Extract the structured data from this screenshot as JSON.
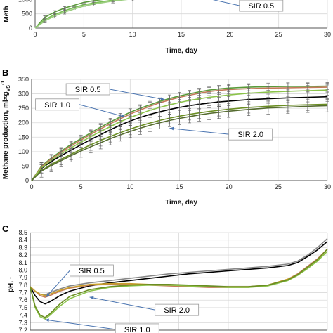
{
  "figure": {
    "panels": [
      {
        "id": "A",
        "label": "",
        "type": "line",
        "xlabel": "Time, day",
        "ylabel": "Meth",
        "xlim": [
          0,
          30
        ],
        "ylim": [
          0,
          1500
        ],
        "xticks": [
          0,
          5,
          10,
          15,
          20,
          25,
          30
        ],
        "xtick_labels": [
          "0",
          "5",
          "10",
          "15",
          "20",
          "25",
          "30"
        ],
        "yticks": [
          0,
          500,
          1000
        ],
        "ytick_labels": [
          "0",
          "500",
          "1000"
        ],
        "callouts": [
          {
            "text": "SIR 0.5",
            "target_x": 16.5,
            "target_y": 1130
          }
        ],
        "series": [
          {
            "color": "#5a9a3a",
            "x": [
              0,
              1,
              2,
              3,
              4,
              5,
              6,
              8,
              10,
              12,
              14,
              16,
              18,
              20,
              22,
              24,
              26,
              28,
              30
            ],
            "y": [
              0,
              380,
              560,
              700,
              800,
              900,
              960,
              1050,
              1110,
              1160,
              1200,
              1230,
              1255,
              1275,
              1290,
              1305,
              1315,
              1325,
              1335
            ]
          },
          {
            "color": "#7abf55",
            "x": [
              0,
              1,
              2,
              3,
              4,
              5,
              6,
              8,
              10,
              12,
              14,
              16,
              18,
              20,
              22,
              24,
              26,
              28,
              30
            ],
            "y": [
              0,
              300,
              470,
              610,
              720,
              820,
              880,
              980,
              1050,
              1110,
              1150,
              1185,
              1210,
              1235,
              1255,
              1270,
              1285,
              1295,
              1305
            ]
          },
          {
            "color": "#9acd7e",
            "x": [
              0,
              1,
              2,
              3,
              4,
              5,
              6,
              8,
              10,
              12,
              14,
              16,
              18,
              20,
              22,
              24,
              26,
              28,
              30
            ],
            "y": [
              0,
              250,
              420,
              560,
              670,
              770,
              840,
              950,
              1020,
              1080,
              1130,
              1165,
              1195,
              1220,
              1240,
              1255,
              1270,
              1280,
              1290
            ]
          }
        ]
      },
      {
        "id": "B",
        "label": "B",
        "type": "line",
        "xlabel": "Time, day",
        "ylabel": "Methane production, ml×g",
        "ylabel_sub": "VS",
        "ylabel_sup": "-1",
        "xlim": [
          0,
          30
        ],
        "ylim": [
          0,
          350
        ],
        "xticks": [
          0,
          5,
          10,
          15,
          20,
          25,
          30
        ],
        "xtick_labels": [
          "0",
          "5",
          "10",
          "15",
          "20",
          "25",
          "30"
        ],
        "yticks": [
          0,
          50,
          100,
          150,
          200,
          250,
          300,
          350
        ],
        "ytick_labels": [
          "0",
          "50",
          "100",
          "150",
          "200",
          "250",
          "300",
          "350"
        ],
        "callouts": [
          {
            "text": "SIR 0.5",
            "box_x": 3.5,
            "box_y": 316,
            "target_x": 13.5,
            "target_y": 280
          },
          {
            "text": "SIR 1.0",
            "box_x": 0.4,
            "box_y": 263,
            "target_x": 9.5,
            "target_y": 220
          },
          {
            "text": "SIR 2.0",
            "box_x": 20,
            "box_y": 160,
            "target_x": 14,
            "target_y": 181
          }
        ],
        "series": [
          {
            "color": "#5a9a3a",
            "x": [
              0,
              1,
              2,
              3,
              4,
              5,
              6,
              7,
              8,
              9,
              10,
              11,
              12,
              13,
              14,
              15,
              16,
              17,
              18,
              19,
              20,
              22,
              24,
              26,
              28,
              30
            ],
            "y": [
              0,
              50,
              78,
              102,
              125,
              145,
              165,
              185,
              203,
              220,
              236,
              250,
              262,
              274,
              284,
              293,
              300,
              307,
              313,
              317,
              320,
              323,
              325,
              326,
              326,
              327
            ]
          },
          {
            "color": "#c47a5a",
            "x": [
              0,
              1,
              2,
              3,
              4,
              5,
              6,
              7,
              8,
              9,
              10,
              11,
              12,
              13,
              14,
              15,
              16,
              17,
              18,
              19,
              20,
              22,
              24,
              26,
              28,
              30
            ],
            "y": [
              0,
              48,
              75,
              98,
              120,
              140,
              160,
              179,
              197,
              214,
              230,
              244,
              257,
              269,
              279,
              288,
              295,
              302,
              308,
              312,
              315,
              318,
              320,
              321,
              322,
              323
            ]
          },
          {
            "color": "#000000",
            "x": [
              0,
              1,
              2,
              3,
              4,
              5,
              6,
              7,
              8,
              9,
              10,
              11,
              12,
              13,
              14,
              15,
              16,
              17,
              18,
              19,
              20,
              22,
              24,
              26,
              28,
              30
            ],
            "y": [
              0,
              42,
              66,
              86,
              105,
              124,
              142,
              159,
              176,
              192,
              206,
              218,
              229,
              238,
              246,
              253,
              259,
              264,
              268,
              272,
              275,
              280,
              283,
              286,
              288,
              290
            ]
          },
          {
            "color": "#8bc34a",
            "x": [
              0,
              1,
              2,
              3,
              4,
              5,
              6,
              7,
              8,
              9,
              10,
              11,
              12,
              13,
              14,
              15,
              16,
              17,
              18,
              19,
              20,
              22,
              24,
              26,
              28,
              30
            ],
            "y": [
              0,
              44,
              70,
              92,
              113,
              133,
              152,
              170,
              187,
              204,
              218,
              231,
              243,
              253,
              262,
              270,
              277,
              283,
              288,
              292,
              296,
              302,
              306,
              309,
              311,
              313
            ]
          },
          {
            "color": "#6b8e23",
            "x": [
              0,
              1,
              2,
              3,
              4,
              5,
              6,
              7,
              8,
              9,
              10,
              11,
              12,
              13,
              14,
              15,
              16,
              17,
              18,
              19,
              20,
              22,
              24,
              26,
              28,
              30
            ],
            "y": [
              0,
              35,
              56,
              74,
              91,
              108,
              124,
              139,
              153,
              166,
              178,
              189,
              199,
              208,
              216,
              223,
              229,
              234,
              239,
              243,
              247,
              253,
              257,
              260,
              262,
              264
            ]
          },
          {
            "color": "#556b2f",
            "x": [
              0,
              1,
              2,
              3,
              4,
              5,
              6,
              7,
              8,
              9,
              10,
              11,
              12,
              13,
              14,
              15,
              16,
              17,
              18,
              19,
              20,
              22,
              24,
              26,
              28,
              30
            ],
            "y": [
              0,
              33,
              52,
              69,
              86,
              102,
              117,
              131,
              145,
              158,
              170,
              181,
              191,
              200,
              208,
              215,
              221,
              227,
              232,
              236,
              240,
              246,
              251,
              254,
              257,
              259
            ]
          }
        ]
      },
      {
        "id": "C",
        "label": "C",
        "type": "line",
        "xlabel": "",
        "ylabel": "pH, -",
        "xlim": [
          0,
          30
        ],
        "ylim": [
          7.2,
          8.5
        ],
        "xticks": [
          0,
          5,
          10,
          15,
          20,
          25,
          30
        ],
        "yticks": [
          7.2,
          7.3,
          7.4,
          7.5,
          7.6,
          7.7,
          7.8,
          7.9,
          8.0,
          8.1,
          8.2,
          8.3,
          8.4,
          8.5
        ],
        "ytick_labels": [
          "7.2",
          "7.3",
          "7.4",
          "7.5",
          "7.6",
          "7.7",
          "7.8",
          "7.9",
          "8.0",
          "8.1",
          "8.2",
          "8.3",
          "8.4",
          "8.5"
        ],
        "callouts": [
          {
            "text": "SIR 0.5",
            "box_x": 4.0,
            "box_y": 7.995,
            "target_x": 1.6,
            "target_y": 7.64
          },
          {
            "text": "SIR 2.0",
            "box_x": 12.6,
            "box_y": 7.47,
            "target_x": 6.0,
            "target_y": 7.64
          },
          {
            "text": "SIR 1.0",
            "box_x": 8.6,
            "box_y": 7.21,
            "target_x": 1.5,
            "target_y": 7.34
          }
        ],
        "series": [
          {
            "color": "#888888",
            "x": [
              0,
              0.5,
              1,
              1.5,
              2,
              3,
              4,
              6,
              8,
              10,
              12,
              14,
              16,
              18,
              20,
              22,
              24,
              26,
              27,
              28,
              29,
              30
            ],
            "y": [
              7.78,
              7.72,
              7.68,
              7.67,
              7.7,
              7.75,
              7.79,
              7.83,
              7.86,
              7.89,
              7.92,
              7.95,
              7.97,
              7.99,
              8.01,
              8.03,
              8.05,
              8.08,
              8.12,
              8.2,
              8.3,
              8.42
            ]
          },
          {
            "color": "#000000",
            "x": [
              0,
              0.5,
              1,
              1.5,
              2,
              3,
              4,
              6,
              8,
              10,
              12,
              14,
              16,
              18,
              20,
              22,
              24,
              26,
              27,
              28,
              29,
              30
            ],
            "y": [
              7.78,
              7.66,
              7.58,
              7.55,
              7.58,
              7.66,
              7.72,
              7.79,
              7.83,
              7.86,
              7.89,
              7.92,
              7.95,
              7.97,
              7.99,
              8.01,
              8.03,
              8.06,
              8.1,
              8.18,
              8.27,
              8.38
            ]
          },
          {
            "color": "#c47a5a",
            "x": [
              0,
              0.5,
              1,
              1.5,
              2,
              3,
              4,
              6,
              8,
              10,
              12,
              14,
              16,
              18,
              20,
              22,
              24,
              26,
              27,
              28,
              29,
              30
            ],
            "y": [
              7.78,
              7.72,
              7.66,
              7.64,
              7.66,
              7.72,
              7.76,
              7.8,
              7.81,
              7.81,
              7.8,
              7.79,
              7.78,
              7.77,
              7.77,
              7.77,
              7.8,
              7.88,
              7.95,
              8.05,
              8.15,
              8.28
            ]
          },
          {
            "color": "#c8a02a",
            "x": [
              0,
              0.5,
              1,
              1.5,
              2,
              3,
              4,
              6,
              8,
              10,
              12,
              14,
              16,
              18,
              20,
              22,
              24,
              26,
              27,
              28,
              29,
              30
            ],
            "y": [
              7.78,
              7.72,
              7.68,
              7.66,
              7.68,
              7.73,
              7.77,
              7.81,
              7.82,
              7.82,
              7.81,
              7.8,
              7.79,
              7.78,
              7.78,
              7.78,
              7.8,
              7.88,
              7.94,
              8.03,
              8.13,
              8.25
            ]
          },
          {
            "color": "#8bc34a",
            "x": [
              0,
              0.5,
              1,
              1.5,
              2,
              3,
              4,
              6,
              8,
              10,
              12,
              14,
              16,
              18,
              20,
              22,
              24,
              26,
              27,
              28,
              29,
              30
            ],
            "y": [
              7.78,
              7.5,
              7.38,
              7.35,
              7.4,
              7.52,
              7.62,
              7.72,
              7.77,
              7.79,
              7.8,
              7.8,
              7.79,
              7.78,
              7.77,
              7.77,
              7.79,
              7.86,
              7.93,
              8.02,
              8.12,
              8.25
            ]
          },
          {
            "color": "#6b8e23",
            "x": [
              0,
              0.5,
              1,
              1.5,
              2,
              3,
              4,
              6,
              8,
              10,
              12,
              14,
              16,
              18,
              20,
              22,
              24,
              26,
              27,
              28,
              29,
              30
            ],
            "y": [
              7.78,
              7.52,
              7.4,
              7.37,
              7.42,
              7.55,
              7.65,
              7.74,
              7.78,
              7.8,
              7.81,
              7.81,
              7.8,
              7.79,
              7.78,
              7.78,
              7.8,
              7.87,
              7.94,
              8.04,
              8.14,
              8.28
            ]
          }
        ]
      }
    ]
  }
}
